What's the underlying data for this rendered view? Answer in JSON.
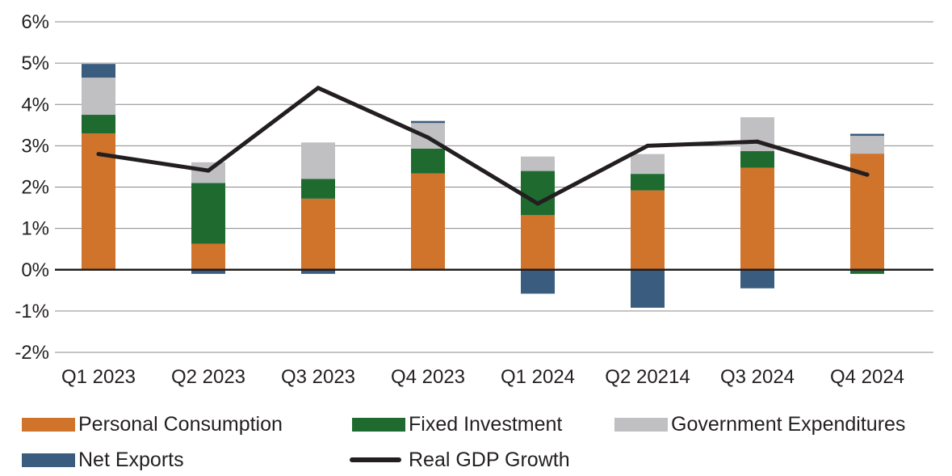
{
  "chart_data": {
    "type": "bar",
    "stacked": true,
    "categories": [
      "Q1 2023",
      "Q2 2023",
      "Q3 2023",
      "Q4 2023",
      "Q1 2024",
      "Q2 20214",
      "Q3 2024",
      "Q4 2024"
    ],
    "series": [
      {
        "name": "Personal Consumption",
        "kind": "bar",
        "color": "#d0732b",
        "values": [
          3.3,
          0.63,
          1.72,
          2.33,
          1.32,
          1.92,
          2.47,
          2.81
        ]
      },
      {
        "name": "Fixed Investment",
        "kind": "bar",
        "color": "#1f6b2f",
        "values": [
          0.45,
          1.47,
          0.48,
          0.6,
          1.07,
          0.4,
          0.4,
          -0.1
        ]
      },
      {
        "name": "Government Expenditures",
        "kind": "bar",
        "color": "#c0c0c2",
        "values": [
          0.9,
          0.5,
          0.88,
          0.62,
          0.35,
          0.48,
          0.82,
          0.43
        ]
      },
      {
        "name": "Net Exports",
        "kind": "bar",
        "color": "#3a5c7e",
        "values": [
          0.33,
          -0.1,
          -0.1,
          0.05,
          -0.58,
          -0.92,
          -0.45,
          0.05
        ]
      },
      {
        "name": "Real GDP Growth",
        "kind": "line",
        "color": "#231f20",
        "values": [
          2.8,
          2.4,
          4.4,
          3.2,
          1.6,
          3.0,
          3.1,
          2.3
        ]
      }
    ],
    "yticks": [
      "6%",
      "5%",
      "4%",
      "3%",
      "2%",
      "1%",
      "0%",
      "-1%",
      "-2%"
    ],
    "ylim": [
      -2,
      6
    ],
    "grid": true,
    "legend_position": "bottom"
  }
}
